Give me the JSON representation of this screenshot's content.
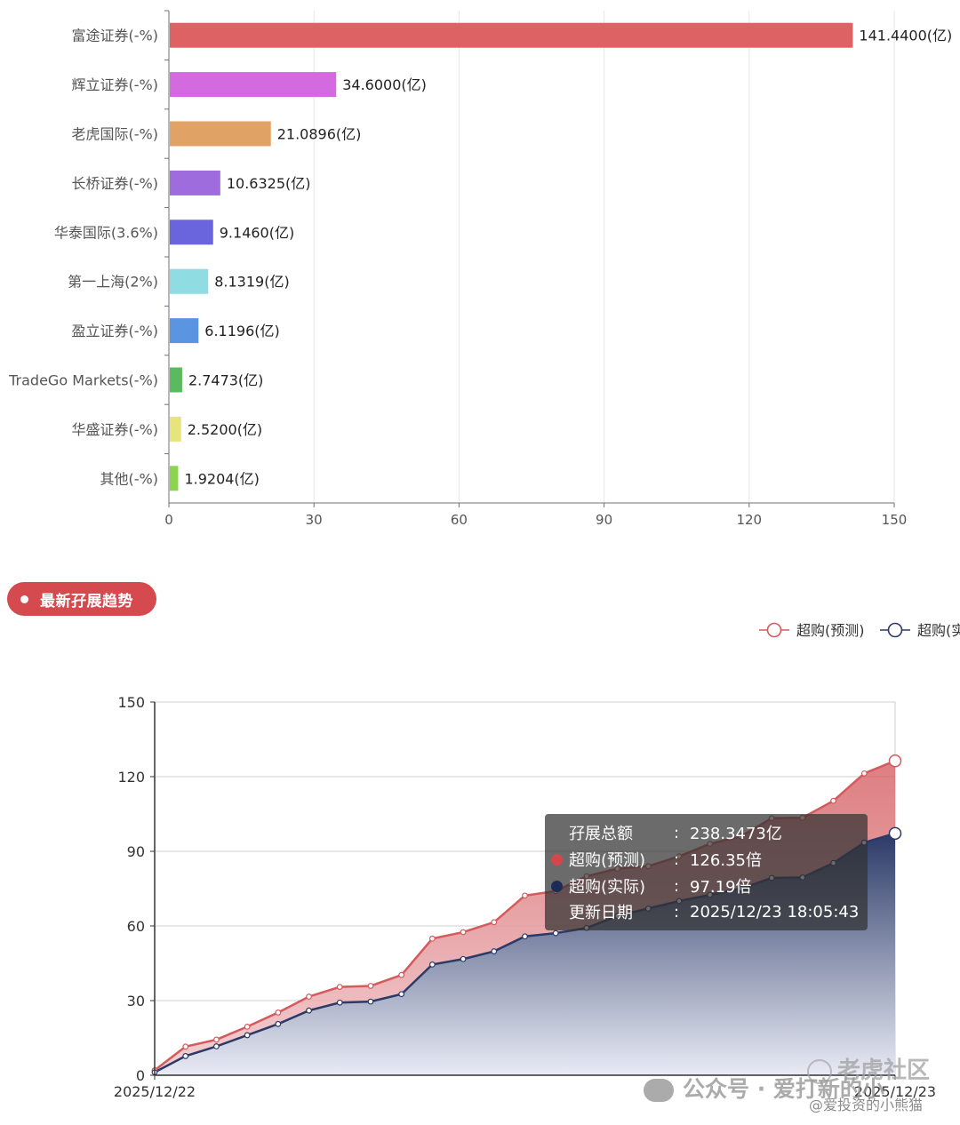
{
  "bar_chart": {
    "categories": [
      "富途证券(-%)",
      "辉立证券(-%)",
      "老虎国际(-%)",
      "长桥证券(-%)",
      "华泰国际(3.6%)",
      "第一上海(2%)",
      "盈立证券(-%)",
      "TradeGo Markets(-%)",
      "华盛证券(-%)",
      "其他(-%)"
    ],
    "value_labels": [
      "141.4400(亿)",
      "34.6000(亿)",
      "21.0896(亿)",
      "10.6325(亿)",
      "9.1460(亿)",
      "8.1319(亿)",
      "6.1196(亿)",
      "2.7473(亿)",
      "2.5200(亿)",
      "1.9204(亿)"
    ],
    "colors": [
      "#dd6263",
      "#d46adf",
      "#e1a365",
      "#9f6cde",
      "#6a65dc",
      "#8fdde2",
      "#5b94e0",
      "#5bba5f",
      "#e6e47a",
      "#8bd54e"
    ],
    "x_ticks": [
      "0",
      "30",
      "60",
      "90",
      "120",
      "150"
    ]
  },
  "section": {
    "title": "最新孖展趋势"
  },
  "legend": {
    "items": [
      {
        "label": "超购(预测)",
        "color": "#d45a5e"
      },
      {
        "label": "超购(实",
        "color": "#2b3a67"
      }
    ]
  },
  "line_chart": {
    "y_ticks": [
      "0",
      "30",
      "60",
      "90",
      "120",
      "150"
    ],
    "x_start_label": "2025/12/22",
    "x_end_label": "2025/12/23"
  },
  "tooltip": {
    "rows": [
      {
        "label": "孖展总额",
        "value": "238.3473亿",
        "dot": ""
      },
      {
        "label": "超购(预测)",
        "value": "126.35倍",
        "dot": "#d2474c"
      },
      {
        "label": "超购(实际)",
        "value": "97.19倍",
        "dot": "#1c2b55"
      },
      {
        "label": "更新日期",
        "value": "2025/12/23 18:05:43",
        "dot": ""
      }
    ],
    "colon": ":"
  },
  "watermarks": {
    "tiger": "老虎社区",
    "wechat": "公众号 · 爱打新的小",
    "handle": "@爱投资的小熊猫"
  },
  "chart_data": [
    {
      "type": "bar",
      "orientation": "horizontal",
      "categories": [
        "富途证券(-%)",
        "辉立证券(-%)",
        "老虎国际(-%)",
        "长桥证券(-%)",
        "华泰国际(3.6%)",
        "第一上海(2%)",
        "盈立证券(-%)",
        "TradeGo Markets(-%)",
        "华盛证券(-%)",
        "其他(-%)"
      ],
      "values": [
        141.44,
        34.6,
        21.0896,
        10.6325,
        9.146,
        8.1319,
        6.1196,
        2.7473,
        2.52,
        1.9204
      ],
      "xlim": [
        0,
        150
      ],
      "grid": true
    },
    {
      "type": "area",
      "x_labels": [
        "2025/12/22",
        "2025/12/23"
      ],
      "ylim": [
        0,
        150
      ],
      "grid": true,
      "legend_position": "top-right",
      "series": [
        {
          "name": "超购(预测)",
          "color": "#d45a5e",
          "values": [
            2,
            11.5,
            14.3,
            19.5,
            25.2,
            31.6,
            35.5,
            35.9,
            40.3,
            54.9,
            57.5,
            61.5,
            72.2,
            74,
            80,
            83,
            84,
            88,
            93,
            96,
            103.3,
            103.5,
            110.3,
            121.3,
            126.35
          ]
        },
        {
          "name": "超购(实际)",
          "color": "#2b3a67",
          "values": [
            1.2,
            7.7,
            11.6,
            16.1,
            20.6,
            26,
            29.2,
            29.6,
            32.6,
            44.5,
            46.7,
            49.8,
            55.8,
            57.1,
            59.2,
            64,
            67,
            70,
            72.5,
            75,
            79.3,
            79.5,
            85.3,
            93.5,
            97.19
          ]
        }
      ]
    }
  ]
}
